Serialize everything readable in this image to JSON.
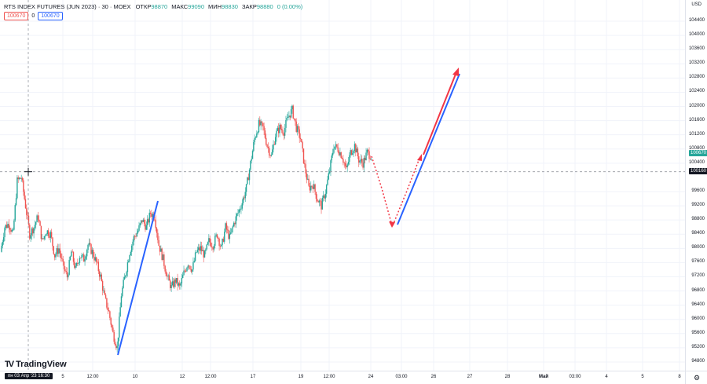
{
  "header": {
    "title": "RTS INDEX FUTURES (JUN 2023) · 30 · MOEX",
    "ohlc": [
      {
        "key": "ОТКР",
        "value": "98870"
      },
      {
        "key": "МАКС",
        "value": "99090"
      },
      {
        "key": "МИН",
        "value": "98830"
      },
      {
        "key": "ЗАКР",
        "value": "98880"
      }
    ],
    "change": "0 (0.00%)"
  },
  "indicator_row": {
    "left_value": "100670",
    "middle": "0",
    "right_value": "100670"
  },
  "currency": "USD",
  "price_axis": {
    "ticks": [
      "104400",
      "104000",
      "103600",
      "103200",
      "102800",
      "102400",
      "102000",
      "101600",
      "101200",
      "100800",
      "100400",
      "99600",
      "99200",
      "98800",
      "98400",
      "98000",
      "97600",
      "97200",
      "96800",
      "96400",
      "96000",
      "95600",
      "95200",
      "94800"
    ],
    "last_price_tag": "100670",
    "crosshair_price_tag": "100160"
  },
  "time_axis": {
    "crosshair_label": "пн 03 Апр '23   16:30",
    "ticks": [
      {
        "label": "5",
        "bold": false
      },
      {
        "label": "12:00",
        "bold": false
      },
      {
        "label": "10",
        "bold": false
      },
      {
        "label": "12",
        "bold": false
      },
      {
        "label": "12:00",
        "bold": false
      },
      {
        "label": "17",
        "bold": false
      },
      {
        "label": "19",
        "bold": false
      },
      {
        "label": "12:00",
        "bold": false
      },
      {
        "label": "24",
        "bold": false
      },
      {
        "label": "03:00",
        "bold": false
      },
      {
        "label": "26",
        "bold": false
      },
      {
        "label": "27",
        "bold": false
      },
      {
        "label": "28",
        "bold": false
      },
      {
        "label": "Май",
        "bold": true
      },
      {
        "label": "03:00",
        "bold": false
      },
      {
        "label": "4",
        "bold": false
      },
      {
        "label": "5",
        "bold": false
      },
      {
        "label": "8",
        "bold": false
      }
    ]
  },
  "branding": {
    "logo_text": "TradingView",
    "logo_mark": "TV"
  },
  "icons": {
    "settings": "gear-icon",
    "crosshair": "crosshair-icon"
  },
  "colors": {
    "up": "#26a69a",
    "down": "#ef5350",
    "trendline_blue": "#2962ff",
    "trendline_red": "#f23645",
    "grid": "#f0f3fa"
  },
  "chart_data": {
    "type": "candlestick",
    "ylim": [
      94600,
      104600
    ],
    "close_path": [
      97900,
      98600,
      98700,
      98400,
      99900,
      100000,
      99200,
      98400,
      98600,
      98900,
      98200,
      98500,
      98400,
      97800,
      98000,
      97500,
      97200,
      97900,
      97400,
      97800,
      97700,
      98100,
      97900,
      97600,
      97200,
      96600,
      96200,
      95600,
      95200,
      96700,
      97300,
      97900,
      98300,
      98500,
      98800,
      98600,
      99000,
      98900,
      98100,
      97700,
      97200,
      96900,
      97100,
      96900,
      97300,
      97600,
      97400,
      97900,
      98000,
      97800,
      98200,
      98100,
      98400,
      98000,
      98600,
      98300,
      98700,
      99000,
      99300,
      99700,
      100400,
      101100,
      101500,
      101400,
      100900,
      100600,
      101200,
      101400,
      101300,
      101700,
      101900,
      101400,
      101100,
      100300,
      99700,
      99800,
      99400,
      99200,
      99600,
      100200,
      100900,
      100800,
      100600,
      100200,
      100700,
      100900,
      100500,
      100400,
      100700,
      100600
    ],
    "annotations": [
      {
        "kind": "trendline",
        "color": "blue",
        "from": [
          "Apr 10",
          95100
        ],
        "to": [
          "Apr 11",
          99600
        ]
      },
      {
        "kind": "trendline",
        "color": "blue",
        "from": [
          "Apr 25",
          98800
        ],
        "to": [
          "Apr 27",
          102900
        ]
      },
      {
        "kind": "projection",
        "color": "red",
        "style": "dotted",
        "path": [
          100700,
          98800,
          100600
        ]
      },
      {
        "kind": "arrow",
        "color": "red",
        "from": [
          "Apr 26",
          100700
        ],
        "to": [
          "Apr 27",
          103100
        ]
      }
    ]
  }
}
